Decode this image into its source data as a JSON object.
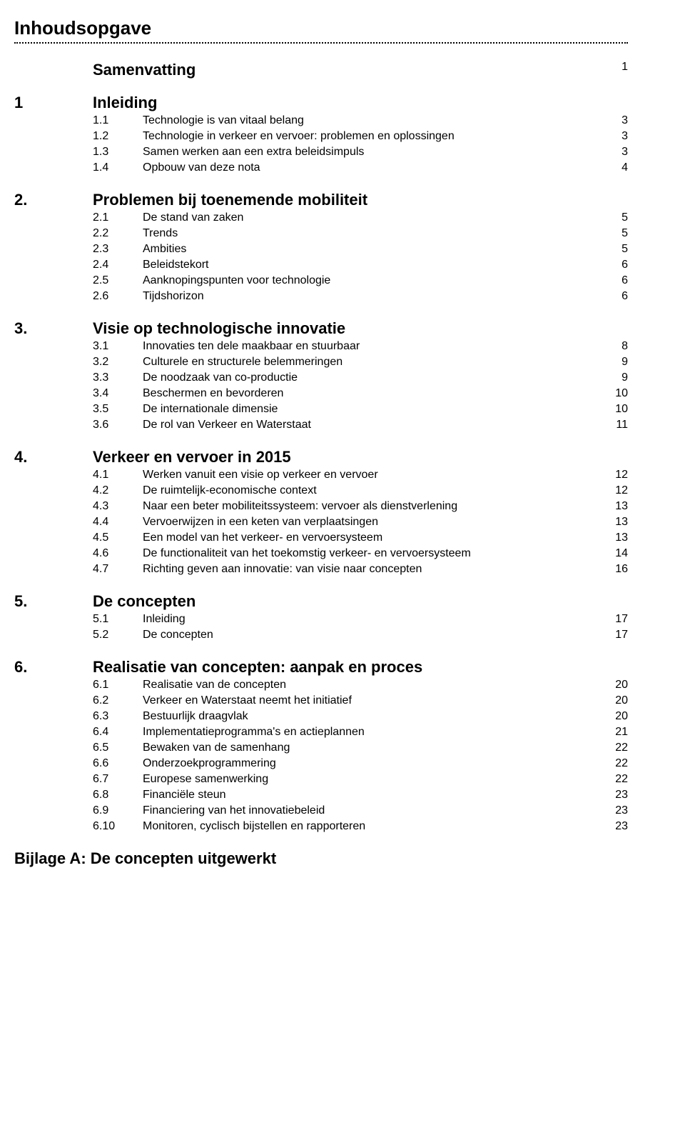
{
  "mainTitle": "Inhoudsopgave",
  "summary": {
    "title": "Samenvatting",
    "page": "1"
  },
  "sections": [
    {
      "num": "1",
      "title": "Inleiding",
      "page": "",
      "subs": [
        {
          "num": "1.1",
          "title": "Technologie is van vitaal belang",
          "page": "3"
        },
        {
          "num": "1.2",
          "title": "Technologie in verkeer en vervoer: problemen en oplossingen",
          "page": "3"
        },
        {
          "num": "1.3",
          "title": "Samen werken aan een extra beleidsimpuls",
          "page": "3"
        },
        {
          "num": "1.4",
          "title": "Opbouw van deze nota",
          "page": "4"
        }
      ]
    },
    {
      "num": "2.",
      "title": "Problemen bij toenemende mobiliteit",
      "page": "",
      "subs": [
        {
          "num": "2.1",
          "title": "De stand van zaken",
          "page": "5"
        },
        {
          "num": "2.2",
          "title": "Trends",
          "page": "5"
        },
        {
          "num": "2.3",
          "title": "Ambities",
          "page": "5"
        },
        {
          "num": "2.4",
          "title": "Beleidstekort",
          "page": "6"
        },
        {
          "num": "2.5",
          "title": "Aanknopingspunten voor technologie",
          "page": "6"
        },
        {
          "num": "2.6",
          "title": "Tijdshorizon",
          "page": "6"
        }
      ]
    },
    {
      "num": "3.",
      "title": "Visie op technologische innovatie",
      "page": "",
      "subs": [
        {
          "num": "3.1",
          "title": "Innovaties ten dele maakbaar en stuurbaar",
          "page": "8"
        },
        {
          "num": "3.2",
          "title": "Culturele en structurele belemmeringen",
          "page": "9"
        },
        {
          "num": "3.3",
          "title": "De noodzaak van co-productie",
          "page": "9"
        },
        {
          "num": "3.4",
          "title": "Beschermen en bevorderen",
          "page": "10"
        },
        {
          "num": "3.5",
          "title": "De internationale dimensie",
          "page": "10"
        },
        {
          "num": "3.6",
          "title": "De rol van Verkeer en Waterstaat",
          "page": "11"
        }
      ]
    },
    {
      "num": "4.",
      "title": "Verkeer en vervoer in 2015",
      "page": "",
      "subs": [
        {
          "num": "4.1",
          "title": "Werken vanuit een visie op verkeer en vervoer",
          "page": "12"
        },
        {
          "num": "4.2",
          "title": "De ruimtelijk-economische context",
          "page": "12"
        },
        {
          "num": "4.3",
          "title": "Naar een beter mobiliteitssysteem: vervoer als dienstverlening",
          "page": "13"
        },
        {
          "num": "4.4",
          "title": "Vervoerwijzen in een keten van verplaatsingen",
          "page": "13"
        },
        {
          "num": "4.5",
          "title": "Een model van het verkeer- en vervoersysteem",
          "page": "13"
        },
        {
          "num": "4.6",
          "title": "De functionaliteit van het toekomstig verkeer- en vervoersysteem",
          "page": "14"
        },
        {
          "num": "4.7",
          "title": "Richting geven aan innovatie: van visie naar concepten",
          "page": "16"
        }
      ]
    },
    {
      "num": "5.",
      "title": "De concepten",
      "page": "",
      "subs": [
        {
          "num": "5.1",
          "title": "Inleiding",
          "page": "17"
        },
        {
          "num": "5.2",
          "title": "De concepten",
          "page": "17"
        }
      ]
    },
    {
      "num": "6.",
      "title": "Realisatie van concepten: aanpak en proces",
      "page": "",
      "subs": [
        {
          "num": "6.1",
          "title": "Realisatie van de concepten",
          "page": "20"
        },
        {
          "num": "6.2",
          "title": "Verkeer en Waterstaat neemt het initiatief",
          "page": "20"
        },
        {
          "num": "6.3",
          "title": "Bestuurlijk draagvlak",
          "page": "20"
        },
        {
          "num": "6.4",
          "title": "Implementatieprogramma's en actieplannen",
          "page": "21"
        },
        {
          "num": "6.5",
          "title": "Bewaken van de samenhang",
          "page": "22"
        },
        {
          "num": "6.6",
          "title": "Onderzoekprogrammering",
          "page": "22"
        },
        {
          "num": "6.7",
          "title": "Europese samenwerking",
          "page": "22"
        },
        {
          "num": "6.8",
          "title": "Financiële steun",
          "page": "23"
        },
        {
          "num": "6.9",
          "title": "Financiering van het innovatiebeleid",
          "page": "23"
        },
        {
          "num": "6.10",
          "title": "Monitoren, cyclisch bijstellen en rapporteren",
          "page": "23"
        }
      ]
    }
  ],
  "appendix": "Bijlage A: De concepten uitgewerkt"
}
